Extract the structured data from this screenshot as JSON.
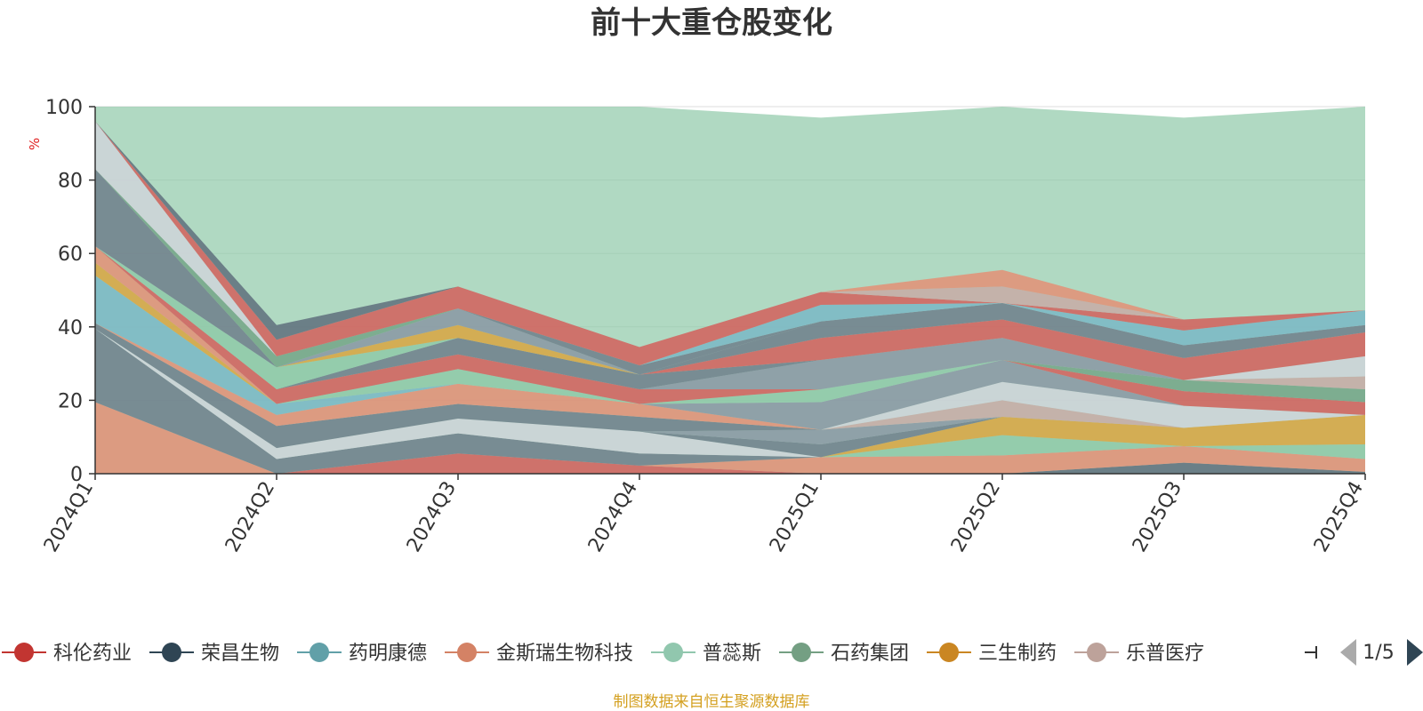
{
  "chart_data": {
    "type": "area",
    "title": "前十大重仓股变化",
    "ylabel": "%",
    "categories": [
      "2024Q1",
      "2024Q2",
      "2024Q3",
      "2024Q4",
      "2025Q1",
      "2025Q2",
      "2025Q3",
      "2025Q4"
    ],
    "ylim": [
      0,
      100
    ],
    "yticks": [
      0,
      20,
      40,
      60,
      80,
      100
    ],
    "grid": true,
    "background_band": {
      "color": "#8fc9a8",
      "values": [
        100,
        100,
        100,
        100,
        97,
        100,
        97,
        100
      ]
    },
    "layers": [
      {
        "color": "#e48f76",
        "values": [
          19.5,
          0,
          0,
          0,
          0,
          0,
          0,
          0
        ]
      },
      {
        "color": "#d35f5c",
        "values": [
          0,
          0,
          5.5,
          2.2,
          0,
          0,
          0,
          0
        ]
      },
      {
        "color": "#5f6f7d",
        "values": [
          0,
          0,
          0,
          0,
          0,
          0,
          3,
          0.5
        ]
      },
      {
        "color": "#e48f76",
        "values": [
          0,
          0,
          0,
          0,
          4.5,
          5,
          4.5,
          3.5
        ]
      },
      {
        "color": "#6f7e8b",
        "values": [
          20,
          4,
          5.5,
          3.3,
          0,
          0,
          0,
          0
        ]
      },
      {
        "color": "#8fc9a8",
        "values": [
          0,
          0,
          0,
          0,
          0,
          5.5,
          0,
          4
        ]
      },
      {
        "color": "#d9a441",
        "values": [
          0,
          0,
          0,
          0,
          0,
          5,
          5,
          8
        ]
      },
      {
        "color": "#cfd4d9",
        "values": [
          0,
          3,
          4,
          6,
          0,
          0,
          0,
          0
        ]
      },
      {
        "color": "#6f7e8b",
        "values": [
          0,
          0,
          0,
          0,
          3.5,
          0,
          0,
          0
        ]
      },
      {
        "color": "#8a96a3",
        "values": [
          0,
          0,
          0,
          0,
          4,
          0,
          0,
          0
        ]
      },
      {
        "color": "#c8aaa6",
        "values": [
          0,
          0,
          0,
          0,
          0,
          4.5,
          0,
          0
        ]
      },
      {
        "color": "#cfd4d9",
        "values": [
          0,
          0,
          0,
          0,
          0,
          5,
          6,
          0
        ]
      },
      {
        "color": "#6f7e8b",
        "values": [
          1.5,
          6,
          4,
          4,
          0,
          0,
          0,
          0
        ]
      },
      {
        "color": "#e48f76",
        "values": [
          0,
          3,
          5.5,
          3.5,
          0,
          0,
          0,
          0
        ]
      },
      {
        "color": "#8a96a3",
        "values": [
          0,
          0,
          0,
          0,
          7.5,
          6,
          0,
          0
        ]
      },
      {
        "color": "#d35f5c",
        "values": [
          0,
          0,
          0,
          0,
          0,
          0,
          4,
          3.5
        ]
      },
      {
        "color": "#7ab7c5",
        "values": [
          13,
          3,
          0,
          0,
          0,
          0,
          0,
          0
        ]
      },
      {
        "color": "#8fc9a8",
        "values": [
          0,
          0,
          4,
          0,
          3.5,
          0,
          0,
          0
        ]
      },
      {
        "color": "#74a587",
        "values": [
          0,
          0,
          0,
          0,
          0,
          0,
          3,
          3.5
        ]
      },
      {
        "color": "#d9a441",
        "values": [
          3.5,
          0,
          0,
          0,
          0,
          0,
          0,
          0
        ]
      },
      {
        "color": "#e48f76",
        "values": [
          4.5,
          0,
          0,
          0,
          0,
          0,
          0,
          0
        ]
      },
      {
        "color": "#d35f5c",
        "values": [
          0,
          4,
          4,
          4,
          0,
          0,
          0,
          0
        ]
      },
      {
        "color": "#c8aaa6",
        "values": [
          0,
          0,
          0,
          0,
          0,
          0,
          0,
          3.5
        ]
      },
      {
        "color": "#8a96a3",
        "values": [
          0,
          0,
          0,
          0,
          8,
          6,
          0,
          0
        ]
      },
      {
        "color": "#cfd4d9",
        "values": [
          0,
          0,
          0,
          0,
          0,
          0,
          0,
          5.5
        ]
      },
      {
        "color": "#6f7e8b",
        "values": [
          0,
          0,
          4.5,
          4,
          0,
          0,
          0,
          0
        ]
      },
      {
        "color": "#d35f5c",
        "values": [
          0,
          0,
          0,
          0,
          6,
          5,
          6,
          6.5
        ]
      },
      {
        "color": "#8fc9a8",
        "values": [
          0,
          6,
          0,
          0,
          0,
          0,
          0,
          0
        ]
      },
      {
        "color": "#6f7e8b",
        "values": [
          21,
          0,
          0,
          0,
          4.5,
          4.5,
          3.5,
          2
        ]
      },
      {
        "color": "#d9a441",
        "values": [
          0,
          0,
          3.5,
          0,
          0,
          0,
          0,
          0
        ]
      },
      {
        "color": "#8a96a3",
        "values": [
          0,
          0,
          4.5,
          0,
          0,
          0,
          0,
          0
        ]
      },
      {
        "color": "#74a587",
        "values": [
          0,
          3,
          0,
          0,
          0,
          0,
          0,
          0
        ]
      },
      {
        "color": "#6f7e8b",
        "values": [
          0,
          0,
          0,
          2.5,
          0,
          0,
          0,
          0
        ]
      },
      {
        "color": "#7ab7c5",
        "values": [
          0,
          0,
          0,
          0,
          4.5,
          0,
          4,
          4
        ]
      },
      {
        "color": "#cfd4d9",
        "values": [
          13,
          0,
          0,
          0,
          0,
          0,
          0,
          0
        ]
      },
      {
        "color": "#d35f5c",
        "values": [
          0,
          4.5,
          6,
          5,
          3.5,
          0,
          3,
          0
        ]
      },
      {
        "color": "#c8aaa6",
        "values": [
          0,
          0,
          0,
          0,
          0,
          4.5,
          0,
          0
        ]
      },
      {
        "color": "#e48f76",
        "values": [
          0,
          0,
          0,
          0,
          0,
          4.5,
          0,
          0
        ]
      },
      {
        "color": "#5f6f7d",
        "values": [
          0,
          4,
          0,
          0,
          0,
          0,
          0,
          0
        ]
      }
    ],
    "legend": {
      "position": "bottom",
      "items": [
        {
          "label": "科伦药业",
          "color": "#c23531"
        },
        {
          "label": "荣昌生物",
          "color": "#2f4554"
        },
        {
          "label": "药明康德",
          "color": "#61a0a8"
        },
        {
          "label": "金斯瑞生物科技",
          "color": "#d48265"
        },
        {
          "label": "普蕊斯",
          "color": "#91c7ae"
        },
        {
          "label": "石药集团",
          "color": "#749f83"
        },
        {
          "label": "三生制药",
          "color": "#ca8622"
        },
        {
          "label": "乐普医疗",
          "color": "#bda29a"
        }
      ],
      "page": "1/5"
    },
    "source": "制图数据来自恒生聚源数据库"
  }
}
